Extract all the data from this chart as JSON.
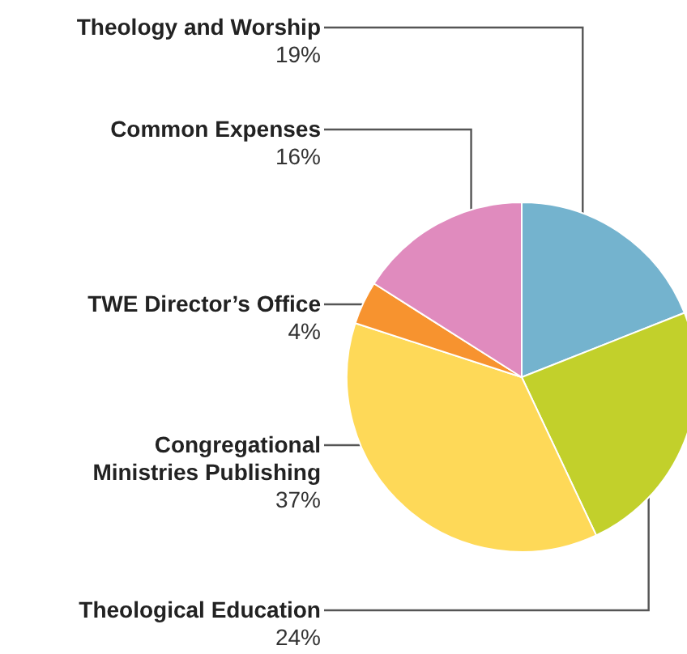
{
  "chart_data": {
    "type": "pie",
    "categories": [
      "Theology and Worship",
      "Theological Education",
      "Congregational Ministries Publishing",
      "TWE Director’s Office",
      "Common Expenses"
    ],
    "values": [
      19,
      24,
      37,
      4,
      16
    ],
    "value_labels": [
      "19%",
      "24%",
      "37%",
      "4%",
      "16%"
    ],
    "colors": [
      "#74b3ce",
      "#c2d02b",
      "#fed958",
      "#f7932f",
      "#e08bbe"
    ],
    "legend": false
  }
}
